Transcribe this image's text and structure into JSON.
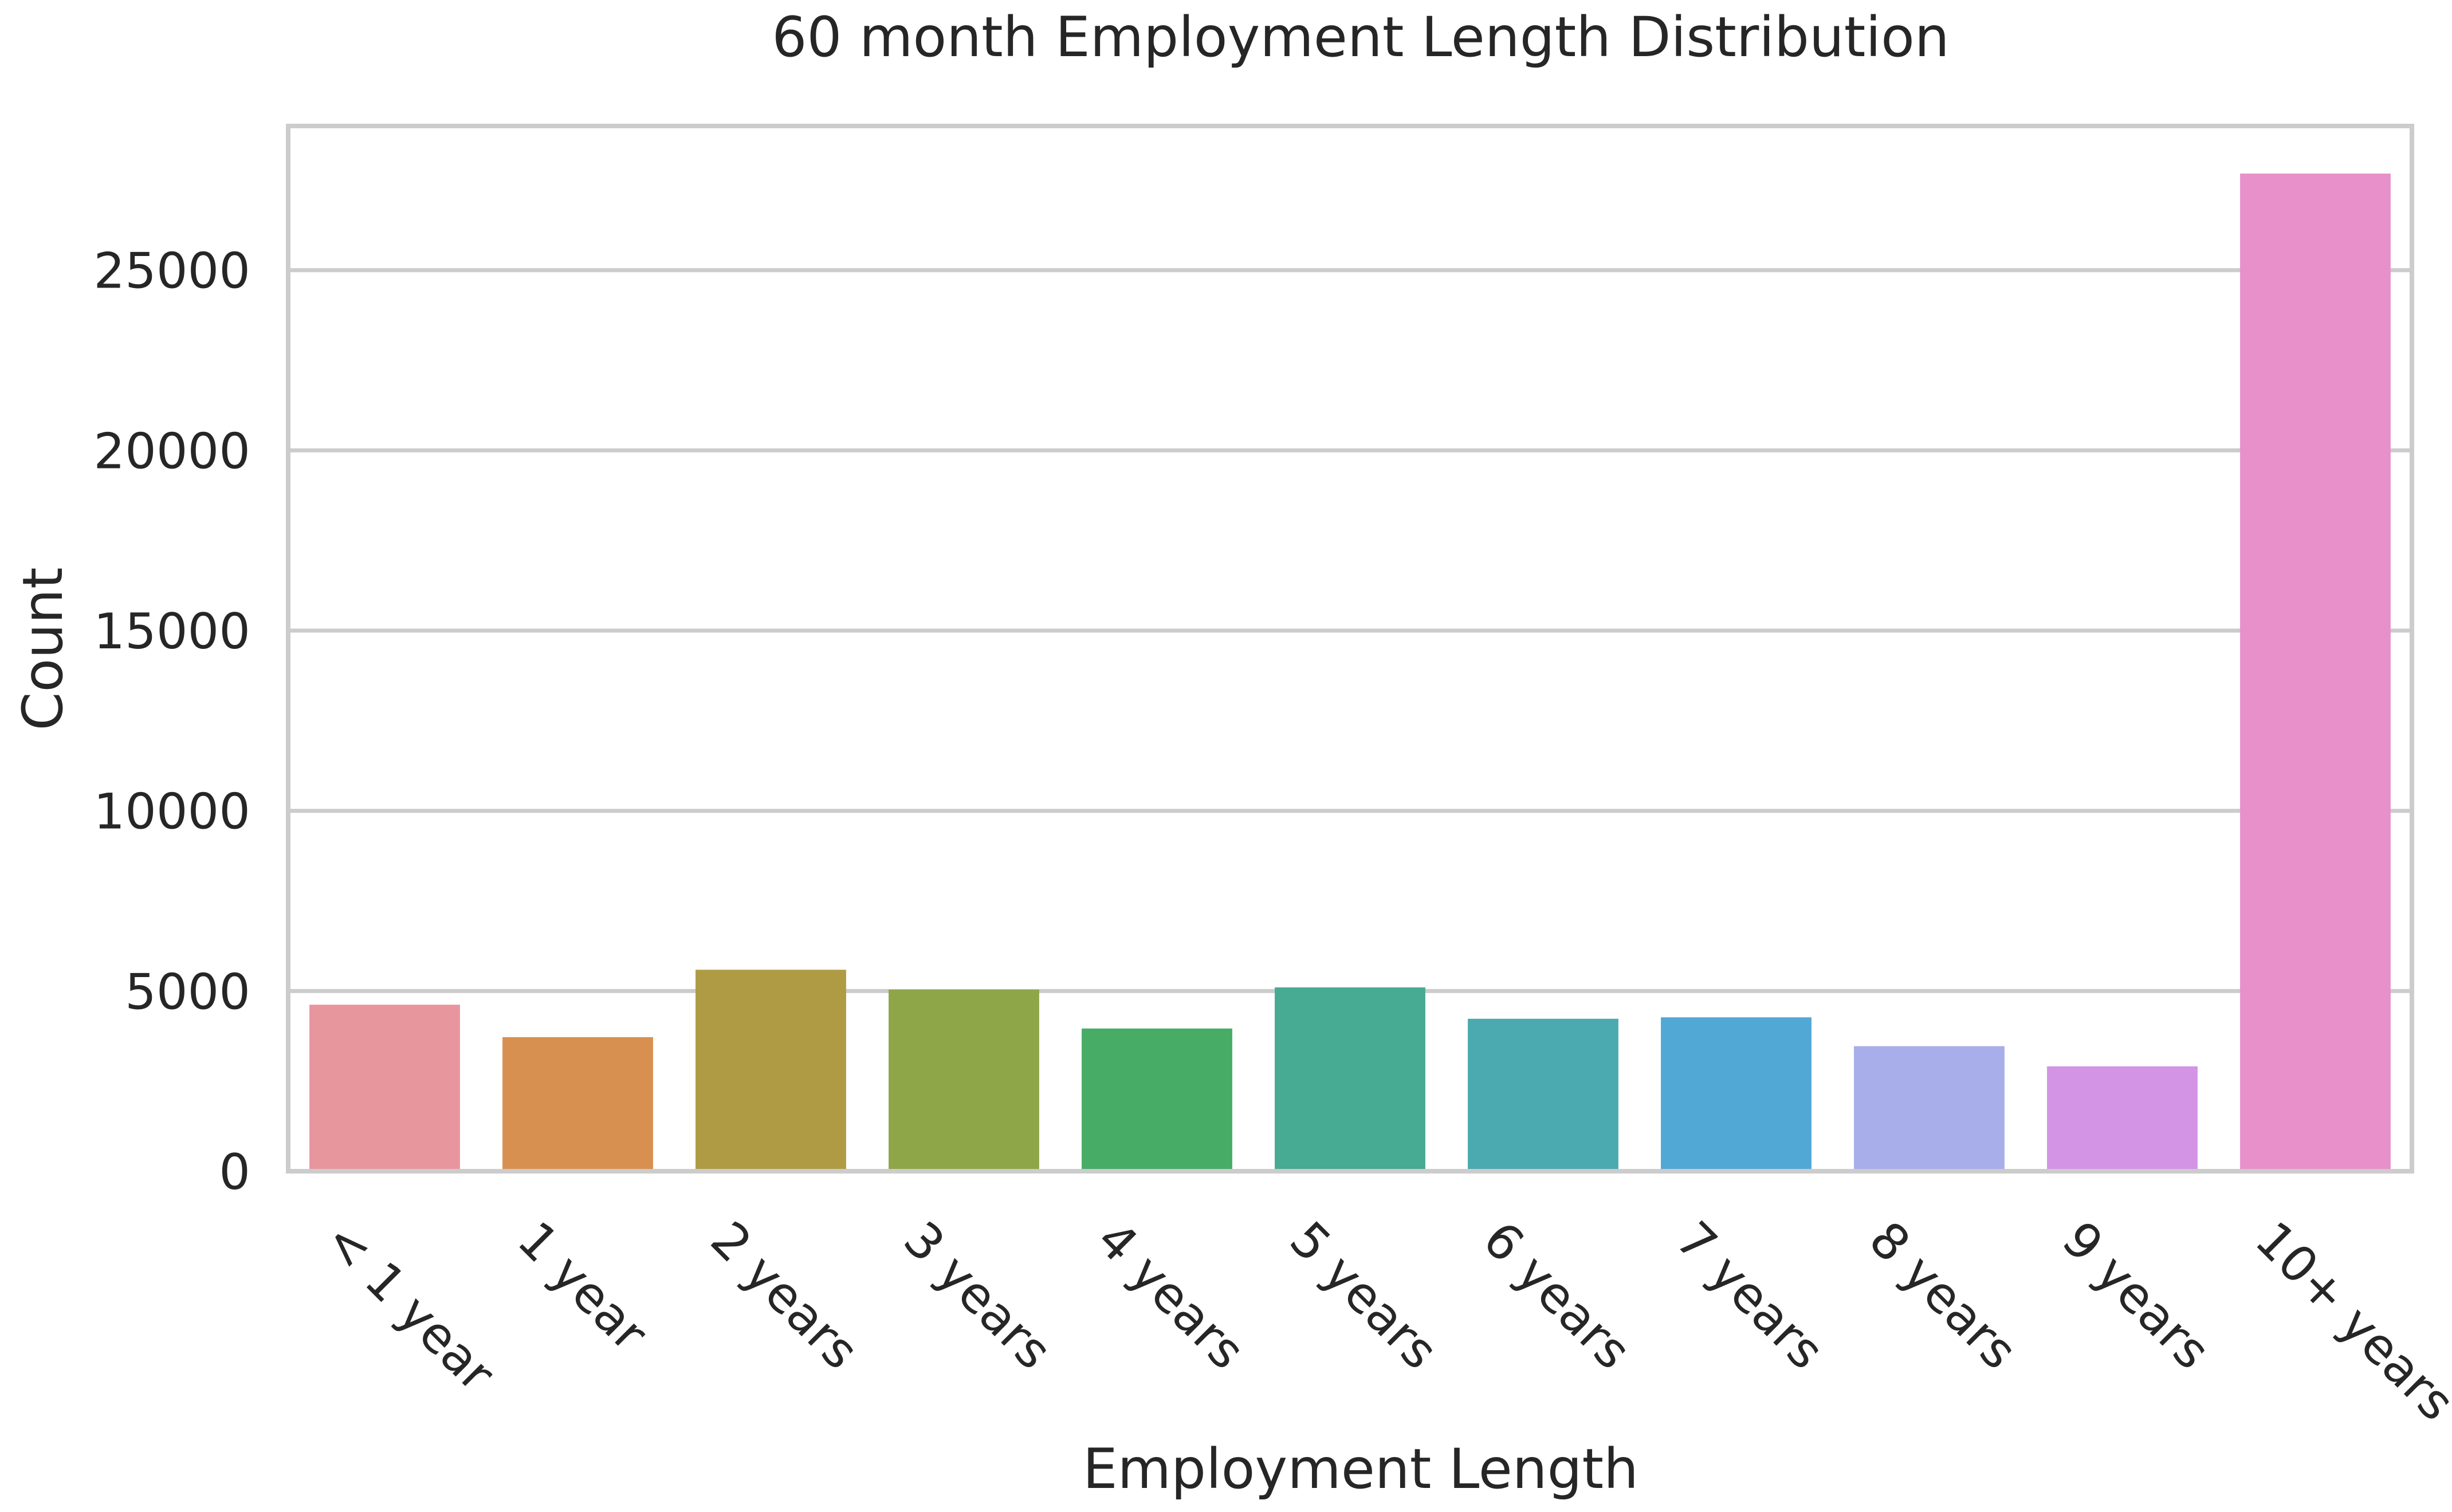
{
  "chart_data": {
    "type": "bar",
    "title": "60 month Employment Length Distribution",
    "xlabel": "Employment Length",
    "ylabel": "Count",
    "categories": [
      "< 1 year",
      "1 year",
      "2 years",
      "3 years",
      "4 years",
      "5 years",
      "6 years",
      "7 years",
      "8 years",
      "9 years",
      "10+ years"
    ],
    "values": [
      4620,
      3720,
      5590,
      5040,
      3960,
      5100,
      4230,
      4270,
      3470,
      2910,
      27680
    ],
    "colors": [
      "#e8969e",
      "#d89050",
      "#b09b45",
      "#8ea647",
      "#47ad66",
      "#47aa93",
      "#4aaab0",
      "#51a8d5",
      "#a7aee9",
      "#d394e5",
      "#e890c9"
    ],
    "ylim": [
      0,
      29000
    ],
    "yticks": [
      0,
      5000,
      10000,
      15000,
      20000,
      25000
    ],
    "grid": true,
    "legend": "none"
  }
}
